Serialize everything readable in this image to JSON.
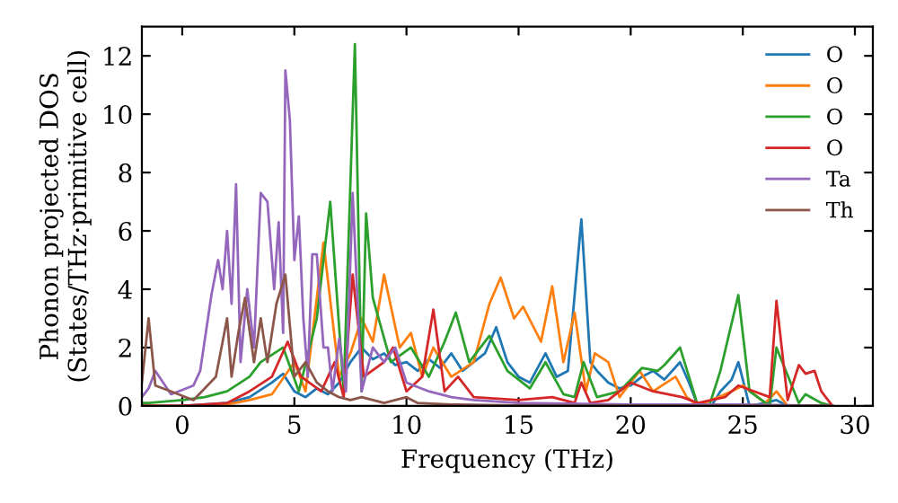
{
  "chart_data": {
    "type": "line",
    "xlabel": "Frequency (THz)",
    "ylabel": "Phonon projected DOS\n(States/THz·primitive cell)",
    "xlim": [
      -1.8,
      30.8
    ],
    "ylim": [
      0,
      13
    ],
    "xticks": [
      0,
      5,
      10,
      15,
      20,
      25,
      30
    ],
    "yticks": [
      0,
      2,
      4,
      6,
      8,
      10,
      12
    ],
    "grid": false,
    "legend": "top right",
    "marker": "none",
    "line_style": "solid",
    "series": [
      {
        "name": "O",
        "color": "#1f77b4",
        "x": [
          -1.8,
          0,
          2,
          3,
          4,
          4.5,
          5,
          5.5,
          6,
          6.5,
          7,
          7.5,
          8,
          8.5,
          9,
          9.5,
          10,
          10.5,
          11,
          11.5,
          12,
          12.5,
          13,
          13.5,
          14,
          14.5,
          15,
          15.5,
          16.2,
          16.7,
          17.2,
          17.8,
          18.2,
          18.5,
          19,
          19.5,
          20,
          20.5,
          21,
          21.5,
          22.2,
          22.6,
          23,
          23.6,
          24,
          24.5,
          24.8,
          25.3,
          26,
          26.5,
          27,
          28,
          29
        ],
        "values": [
          0,
          0,
          0.1,
          0.3,
          0.8,
          1.1,
          0.5,
          0.3,
          0.6,
          0.4,
          0.8,
          1.5,
          2,
          1.6,
          1.8,
          1.4,
          1.5,
          1.2,
          1.6,
          1.3,
          1.8,
          1.2,
          1.5,
          1.8,
          2.7,
          1.5,
          1,
          0.8,
          1.8,
          1.0,
          1.2,
          6.4,
          1.5,
          1.2,
          0.8,
          0.6,
          0.7,
          1.0,
          1.2,
          0.9,
          1.5,
          0.8,
          0,
          0,
          0.5,
          0.9,
          1.5,
          0,
          0.1,
          0.2,
          0,
          0,
          0
        ]
      },
      {
        "name": "O",
        "color": "#ff7f0e",
        "x": [
          -1.8,
          0,
          2,
          3,
          4,
          5,
          5.5,
          6.3,
          7,
          7.5,
          8,
          8.5,
          9,
          9.7,
          10.2,
          10.7,
          11.2,
          12,
          13,
          13.7,
          14.2,
          14.8,
          15.2,
          16,
          16.5,
          17,
          17.5,
          18,
          18.4,
          19,
          19.5,
          20.4,
          21,
          22,
          22.5,
          23,
          24.5,
          25,
          26,
          26.5,
          27,
          28,
          29
        ],
        "values": [
          0,
          0,
          0.05,
          0.2,
          0.4,
          1.5,
          0.5,
          5.6,
          1,
          1.8,
          3,
          2.2,
          4.5,
          2,
          2.5,
          1,
          2,
          1,
          1.5,
          3.5,
          4.4,
          3,
          3.4,
          2.2,
          4.1,
          1.5,
          3.2,
          0.5,
          1.8,
          1.5,
          0.3,
          1.2,
          0.5,
          1,
          0.3,
          0,
          0.5,
          0.7,
          0.1,
          0.5,
          0,
          0,
          0
        ]
      },
      {
        "name": "O",
        "color": "#2ca02c",
        "x": [
          -1.8,
          -1.5,
          0,
          1,
          2,
          3,
          3.5,
          4.5,
          5.2,
          6,
          6.6,
          7.2,
          7.7,
          8,
          8.2,
          8.5,
          9.3,
          10.2,
          11,
          11.7,
          12.2,
          12.8,
          13.7,
          14.5,
          15.5,
          16.2,
          17,
          17.5,
          17.9,
          18.5,
          19.5,
          20.5,
          21.2,
          21.5,
          22.2,
          22.6,
          23,
          23.5,
          24,
          24.8,
          25.3,
          26.2,
          26.5,
          27.5,
          27.8,
          28.5,
          29
        ],
        "values": [
          0.1,
          0.1,
          0.2,
          0.3,
          0.5,
          1,
          1.5,
          2,
          0.5,
          3,
          7,
          0.5,
          12.4,
          0.5,
          6.6,
          3.7,
          1.5,
          2,
          1,
          2.2,
          3.2,
          1.5,
          2.4,
          1.2,
          0.6,
          1.5,
          0.4,
          0.3,
          1.5,
          0.3,
          0.5,
          1.3,
          1.2,
          1.4,
          2,
          1,
          0,
          0,
          1.2,
          3.8,
          0.5,
          0,
          2,
          0.1,
          0.4,
          0.1,
          0
        ]
      },
      {
        "name": "O",
        "color": "#d62728",
        "x": [
          -1.8,
          0,
          2,
          3,
          4,
          4.7,
          5.3,
          6.2,
          6.8,
          7.2,
          7.6,
          8.1,
          9,
          9.4,
          10,
          10.7,
          11.2,
          11.7,
          12.3,
          13,
          15,
          16.5,
          17.5,
          17.8,
          18.2,
          19,
          20,
          21,
          22.3,
          23,
          24.2,
          24.8,
          26.2,
          26.5,
          27,
          27.5,
          27.8,
          28.2,
          28.5,
          29
        ],
        "values": [
          0,
          0,
          0.1,
          0.5,
          1,
          2.2,
          1,
          0.5,
          1.5,
          0.3,
          4.5,
          1,
          1.5,
          2,
          0.5,
          1,
          3.3,
          0.5,
          1,
          0.3,
          0.2,
          0.3,
          0.1,
          0.8,
          0.1,
          0.2,
          0.8,
          0.5,
          0.3,
          0.1,
          0.3,
          0.7,
          0.3,
          3.6,
          0.2,
          1.4,
          1.1,
          1.2,
          0.5,
          0
        ]
      },
      {
        "name": "Ta",
        "color": "#9467bd",
        "x": [
          -1.8,
          -1.5,
          -1.2,
          -0.5,
          0.5,
          0.8,
          1.3,
          1.6,
          1.8,
          2,
          2.2,
          2.4,
          2.6,
          2.9,
          3.2,
          3.5,
          3.8,
          4.1,
          4.3,
          4.5,
          4.6,
          4.8,
          5,
          5.2,
          5.4,
          5.6,
          5.8,
          6,
          6.3,
          6.5,
          6.7,
          7,
          7.3,
          7.6,
          8,
          8.5,
          9,
          9.5,
          10,
          11,
          12,
          13,
          15,
          20,
          25,
          29
        ],
        "values": [
          0.3,
          0.6,
          1.2,
          0.4,
          0.7,
          1.2,
          3.8,
          5,
          4,
          6,
          3.5,
          7.6,
          1.5,
          4,
          2,
          7.3,
          7,
          4,
          6.3,
          2.5,
          11.5,
          9.8,
          5,
          6.5,
          3,
          1,
          5.2,
          5.2,
          2,
          2,
          0.5,
          2.3,
          0.5,
          7.3,
          0.5,
          2,
          1.5,
          2,
          0.8,
          0.5,
          0.3,
          0.2,
          0.1,
          0.05,
          0.05,
          0
        ]
      },
      {
        "name": "Th",
        "color": "#8c564b",
        "x": [
          -1.8,
          -1.5,
          -1.2,
          -0.5,
          0.5,
          1.5,
          2,
          2.2,
          2.5,
          2.8,
          3.2,
          3.5,
          3.8,
          4.2,
          4.6,
          5,
          5.5,
          6,
          6.5,
          7,
          7.5,
          8,
          9,
          10,
          10.5,
          12,
          15,
          20,
          29
        ],
        "values": [
          0.8,
          3,
          0.7,
          0.5,
          0.2,
          1,
          3,
          1,
          2.5,
          3.7,
          1.5,
          3,
          1.5,
          3.5,
          4.5,
          1,
          1.5,
          0.8,
          0.5,
          0.3,
          0.2,
          0.3,
          0.1,
          0.3,
          0.1,
          0.05,
          0.02,
          0.01,
          0
        ]
      }
    ]
  }
}
